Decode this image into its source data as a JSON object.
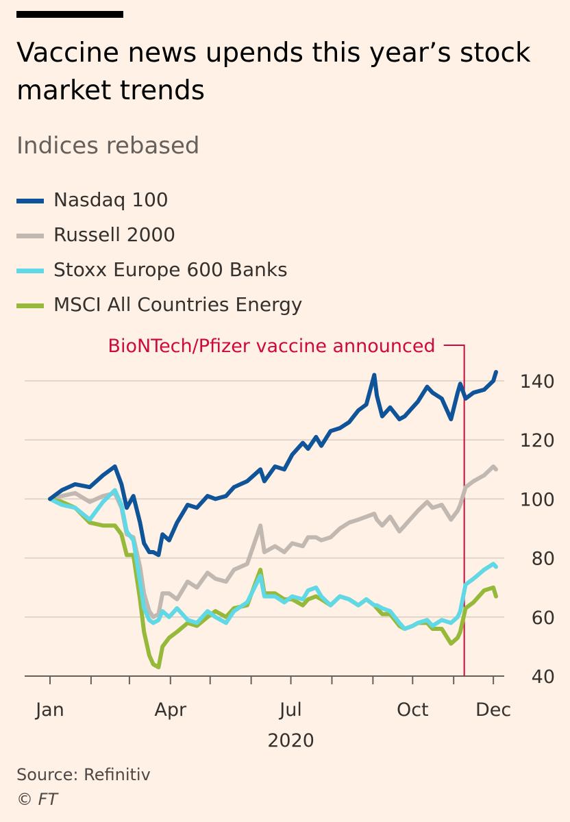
{
  "title": "Vaccine news upends this year’s stock market trends",
  "subtitle": "Indices rebased",
  "source": "Source: Refinitiv",
  "copyright_symbol": "©",
  "copyright_brand": "FT",
  "colors": {
    "background": "#FFF1E5",
    "gridline": "#D9CCC1",
    "annotation": "#CC0A3C"
  },
  "chart_data": {
    "type": "line",
    "title": "Vaccine news upends this year’s stock market trends",
    "subtitle": "Indices rebased",
    "x_axis": {
      "type": "date",
      "range": [
        "2020-01-01",
        "2020-12-03"
      ],
      "tick_dates": [
        "2020-01-01",
        "2020-02-01",
        "2020-03-01",
        "2020-04-01",
        "2020-05-01",
        "2020-06-01",
        "2020-07-01",
        "2020-08-01",
        "2020-09-01",
        "2020-10-01",
        "2020-11-01",
        "2020-12-01"
      ],
      "labels": [
        {
          "date": "2020-01-01",
          "text": "Jan"
        },
        {
          "date": "2020-04-01",
          "text": "Apr"
        },
        {
          "date": "2020-07-01",
          "text": "Jul"
        },
        {
          "date": "2020-10-01",
          "text": "Oct"
        },
        {
          "date": "2020-12-01",
          "text": "Dec"
        }
      ],
      "year_label": "2020"
    },
    "y_axis": {
      "range": [
        40,
        145
      ],
      "ticks": [
        40,
        60,
        80,
        100,
        120,
        140
      ],
      "tick_labels": [
        "40",
        "60",
        "80",
        "100",
        "120",
        "140"
      ],
      "position": "right",
      "grid": true
    },
    "legend_position": "top-left",
    "annotations": [
      {
        "date": "2020-11-09",
        "text": "BioNTech/Pfizer vaccine announced"
      }
    ],
    "series": [
      {
        "name": "Nasdaq 100",
        "color": "#0F5499",
        "points": [
          [
            "2020-01-01",
            100
          ],
          [
            "2020-01-10",
            103
          ],
          [
            "2020-01-20",
            105
          ],
          [
            "2020-01-31",
            104
          ],
          [
            "2020-02-10",
            108
          ],
          [
            "2020-02-19",
            111
          ],
          [
            "2020-02-24",
            105
          ],
          [
            "2020-02-28",
            97
          ],
          [
            "2020-03-04",
            101
          ],
          [
            "2020-03-09",
            92
          ],
          [
            "2020-03-12",
            85
          ],
          [
            "2020-03-16",
            82
          ],
          [
            "2020-03-19",
            82
          ],
          [
            "2020-03-23",
            81
          ],
          [
            "2020-03-26",
            88
          ],
          [
            "2020-03-31",
            86
          ],
          [
            "2020-04-06",
            92
          ],
          [
            "2020-04-14",
            98
          ],
          [
            "2020-04-21",
            97
          ],
          [
            "2020-04-29",
            101
          ],
          [
            "2020-05-05",
            100
          ],
          [
            "2020-05-13",
            101
          ],
          [
            "2020-05-19",
            104
          ],
          [
            "2020-05-29",
            106
          ],
          [
            "2020-06-08",
            110
          ],
          [
            "2020-06-11",
            106
          ],
          [
            "2020-06-19",
            111
          ],
          [
            "2020-06-26",
            110
          ],
          [
            "2020-07-02",
            115
          ],
          [
            "2020-07-10",
            119
          ],
          [
            "2020-07-14",
            117
          ],
          [
            "2020-07-20",
            121
          ],
          [
            "2020-07-24",
            118
          ],
          [
            "2020-07-31",
            123
          ],
          [
            "2020-08-07",
            124
          ],
          [
            "2020-08-14",
            126
          ],
          [
            "2020-08-21",
            130
          ],
          [
            "2020-08-27",
            132
          ],
          [
            "2020-09-02",
            142
          ],
          [
            "2020-09-04",
            135
          ],
          [
            "2020-09-08",
            128
          ],
          [
            "2020-09-14",
            131
          ],
          [
            "2020-09-21",
            127
          ],
          [
            "2020-09-25",
            128
          ],
          [
            "2020-10-01",
            131
          ],
          [
            "2020-10-05",
            133
          ],
          [
            "2020-10-12",
            138
          ],
          [
            "2020-10-16",
            136
          ],
          [
            "2020-10-23",
            134
          ],
          [
            "2020-10-30",
            127
          ],
          [
            "2020-11-04",
            136
          ],
          [
            "2020-11-06",
            139
          ],
          [
            "2020-11-10",
            134
          ],
          [
            "2020-11-16",
            136
          ],
          [
            "2020-11-24",
            137
          ],
          [
            "2020-12-01",
            140
          ],
          [
            "2020-12-03",
            143
          ]
        ]
      },
      {
        "name": "Russell 2000",
        "color": "#C0B8B1",
        "points": [
          [
            "2020-01-01",
            100
          ],
          [
            "2020-01-10",
            101
          ],
          [
            "2020-01-20",
            102
          ],
          [
            "2020-01-31",
            99
          ],
          [
            "2020-02-10",
            101
          ],
          [
            "2020-02-19",
            102
          ],
          [
            "2020-02-24",
            97
          ],
          [
            "2020-02-28",
            88
          ],
          [
            "2020-03-04",
            87
          ],
          [
            "2020-03-09",
            77
          ],
          [
            "2020-03-12",
            68
          ],
          [
            "2020-03-16",
            62
          ],
          [
            "2020-03-19",
            60
          ],
          [
            "2020-03-23",
            61
          ],
          [
            "2020-03-26",
            68
          ],
          [
            "2020-03-31",
            68
          ],
          [
            "2020-04-06",
            66
          ],
          [
            "2020-04-14",
            72
          ],
          [
            "2020-04-21",
            70
          ],
          [
            "2020-04-29",
            75
          ],
          [
            "2020-05-05",
            73
          ],
          [
            "2020-05-13",
            72
          ],
          [
            "2020-05-19",
            76
          ],
          [
            "2020-05-29",
            78
          ],
          [
            "2020-06-08",
            91
          ],
          [
            "2020-06-11",
            82
          ],
          [
            "2020-06-19",
            84
          ],
          [
            "2020-06-26",
            82
          ],
          [
            "2020-07-02",
            85
          ],
          [
            "2020-07-10",
            84
          ],
          [
            "2020-07-14",
            87
          ],
          [
            "2020-07-20",
            87
          ],
          [
            "2020-07-24",
            86
          ],
          [
            "2020-07-31",
            87
          ],
          [
            "2020-08-07",
            90
          ],
          [
            "2020-08-14",
            92
          ],
          [
            "2020-08-21",
            93
          ],
          [
            "2020-08-27",
            94
          ],
          [
            "2020-09-02",
            95
          ],
          [
            "2020-09-04",
            93
          ],
          [
            "2020-09-08",
            91
          ],
          [
            "2020-09-14",
            94
          ],
          [
            "2020-09-21",
            89
          ],
          [
            "2020-09-25",
            91
          ],
          [
            "2020-10-01",
            94
          ],
          [
            "2020-10-05",
            96
          ],
          [
            "2020-10-12",
            99
          ],
          [
            "2020-10-16",
            97
          ],
          [
            "2020-10-23",
            98
          ],
          [
            "2020-10-30",
            93
          ],
          [
            "2020-11-04",
            96
          ],
          [
            "2020-11-06",
            98
          ],
          [
            "2020-11-10",
            104
          ],
          [
            "2020-11-16",
            106
          ],
          [
            "2020-11-24",
            108
          ],
          [
            "2020-12-01",
            111
          ],
          [
            "2020-12-03",
            110
          ]
        ]
      },
      {
        "name": "Stoxx Europe 600 Banks",
        "color": "#60D8E6",
        "points": [
          [
            "2020-01-01",
            100
          ],
          [
            "2020-01-10",
            98
          ],
          [
            "2020-01-20",
            97
          ],
          [
            "2020-01-31",
            93
          ],
          [
            "2020-02-10",
            99
          ],
          [
            "2020-02-19",
            103
          ],
          [
            "2020-02-24",
            98
          ],
          [
            "2020-02-28",
            89
          ],
          [
            "2020-03-04",
            86
          ],
          [
            "2020-03-09",
            72
          ],
          [
            "2020-03-12",
            63
          ],
          [
            "2020-03-16",
            59
          ],
          [
            "2020-03-19",
            58
          ],
          [
            "2020-03-23",
            59
          ],
          [
            "2020-03-26",
            62
          ],
          [
            "2020-03-31",
            60
          ],
          [
            "2020-04-06",
            63
          ],
          [
            "2020-04-14",
            59
          ],
          [
            "2020-04-21",
            58
          ],
          [
            "2020-04-29",
            62
          ],
          [
            "2020-05-05",
            60
          ],
          [
            "2020-05-13",
            58
          ],
          [
            "2020-05-19",
            62
          ],
          [
            "2020-05-29",
            65
          ],
          [
            "2020-06-08",
            74
          ],
          [
            "2020-06-11",
            67
          ],
          [
            "2020-06-19",
            67
          ],
          [
            "2020-06-26",
            65
          ],
          [
            "2020-07-02",
            67
          ],
          [
            "2020-07-10",
            66
          ],
          [
            "2020-07-14",
            69
          ],
          [
            "2020-07-20",
            70
          ],
          [
            "2020-07-24",
            67
          ],
          [
            "2020-07-31",
            64
          ],
          [
            "2020-08-07",
            67
          ],
          [
            "2020-08-14",
            66
          ],
          [
            "2020-08-21",
            64
          ],
          [
            "2020-08-27",
            66
          ],
          [
            "2020-09-02",
            64
          ],
          [
            "2020-09-04",
            64
          ],
          [
            "2020-09-08",
            63
          ],
          [
            "2020-09-14",
            62
          ],
          [
            "2020-09-21",
            58
          ],
          [
            "2020-09-25",
            56
          ],
          [
            "2020-10-01",
            57
          ],
          [
            "2020-10-05",
            58
          ],
          [
            "2020-10-12",
            59
          ],
          [
            "2020-10-16",
            57
          ],
          [
            "2020-10-23",
            59
          ],
          [
            "2020-10-30",
            58
          ],
          [
            "2020-11-04",
            60
          ],
          [
            "2020-11-06",
            62
          ],
          [
            "2020-11-10",
            71
          ],
          [
            "2020-11-16",
            73
          ],
          [
            "2020-11-24",
            76
          ],
          [
            "2020-12-01",
            78
          ],
          [
            "2020-12-03",
            77
          ]
        ]
      },
      {
        "name": "MSCI All Countries Energy",
        "color": "#96B939",
        "points": [
          [
            "2020-01-01",
            100
          ],
          [
            "2020-01-10",
            99
          ],
          [
            "2020-01-20",
            97
          ],
          [
            "2020-01-31",
            92
          ],
          [
            "2020-02-10",
            91
          ],
          [
            "2020-02-19",
            91
          ],
          [
            "2020-02-24",
            88
          ],
          [
            "2020-02-28",
            81
          ],
          [
            "2020-03-04",
            81
          ],
          [
            "2020-03-09",
            66
          ],
          [
            "2020-03-12",
            55
          ],
          [
            "2020-03-16",
            47
          ],
          [
            "2020-03-19",
            44
          ],
          [
            "2020-03-23",
            43
          ],
          [
            "2020-03-26",
            50
          ],
          [
            "2020-03-31",
            53
          ],
          [
            "2020-04-06",
            55
          ],
          [
            "2020-04-14",
            58
          ],
          [
            "2020-04-21",
            57
          ],
          [
            "2020-04-29",
            60
          ],
          [
            "2020-05-05",
            62
          ],
          [
            "2020-05-13",
            60
          ],
          [
            "2020-05-19",
            63
          ],
          [
            "2020-05-29",
            64
          ],
          [
            "2020-06-08",
            76
          ],
          [
            "2020-06-11",
            68
          ],
          [
            "2020-06-19",
            68
          ],
          [
            "2020-06-26",
            66
          ],
          [
            "2020-07-02",
            66
          ],
          [
            "2020-07-10",
            64
          ],
          [
            "2020-07-14",
            66
          ],
          [
            "2020-07-20",
            67
          ],
          [
            "2020-07-24",
            66
          ],
          [
            "2020-07-31",
            64
          ],
          [
            "2020-08-07",
            67
          ],
          [
            "2020-08-14",
            66
          ],
          [
            "2020-08-21",
            64
          ],
          [
            "2020-08-27",
            66
          ],
          [
            "2020-09-02",
            64
          ],
          [
            "2020-09-04",
            63
          ],
          [
            "2020-09-08",
            61
          ],
          [
            "2020-09-14",
            61
          ],
          [
            "2020-09-21",
            57
          ],
          [
            "2020-09-25",
            56
          ],
          [
            "2020-10-01",
            57
          ],
          [
            "2020-10-05",
            58
          ],
          [
            "2020-10-12",
            58
          ],
          [
            "2020-10-16",
            56
          ],
          [
            "2020-10-23",
            56
          ],
          [
            "2020-10-30",
            51
          ],
          [
            "2020-11-04",
            53
          ],
          [
            "2020-11-06",
            55
          ],
          [
            "2020-11-10",
            63
          ],
          [
            "2020-11-16",
            65
          ],
          [
            "2020-11-24",
            69
          ],
          [
            "2020-12-01",
            70
          ],
          [
            "2020-12-03",
            67
          ]
        ]
      }
    ]
  }
}
